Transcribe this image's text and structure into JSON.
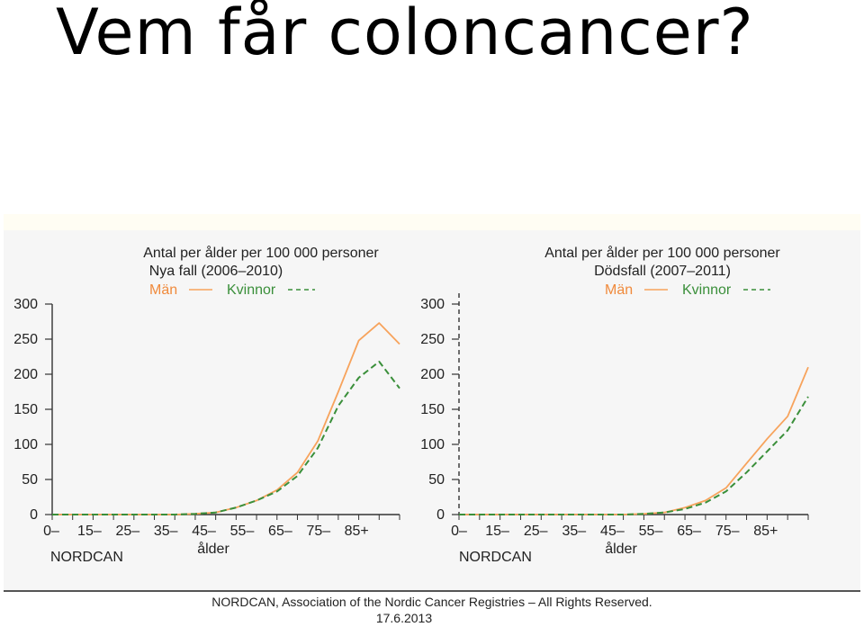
{
  "slide": {
    "title": "Vem får coloncancer?"
  },
  "colors": {
    "men": "#f7a35c",
    "women": "#3a8f3a",
    "text": "#222222",
    "men_label": "#f08a3c",
    "women_label": "#3a8f3a"
  },
  "chart_data": [
    {
      "type": "line",
      "title": "Antal per ålder per 100 000 personer",
      "subtitle": "Nya fall (2006–2010)",
      "source": "NORDCAN",
      "xlabel": "ålder",
      "ylabel": "",
      "x_tick_labels": [
        "0–",
        "15–",
        "25–",
        "35–",
        "45–",
        "55–",
        "65–",
        "75–",
        "85+"
      ],
      "y_ticks": [
        0,
        50,
        100,
        150,
        200,
        250,
        300
      ],
      "ylim": [
        0,
        300
      ],
      "legend": {
        "placement": "top",
        "men_label": "Män",
        "women_label": "Kvinnor"
      },
      "x": [
        0,
        5,
        10,
        15,
        20,
        25,
        30,
        35,
        40,
        45,
        50,
        55,
        60,
        65,
        70,
        75,
        80,
        85
      ],
      "series": [
        {
          "name": "Män",
          "style": "solid",
          "values": [
            0,
            0,
            0,
            0,
            0,
            0,
            0,
            1,
            3,
            10,
            20,
            35,
            60,
            105,
            175,
            248,
            273,
            243
          ]
        },
        {
          "name": "Kvinnor",
          "style": "dashed",
          "values": [
            0,
            0,
            0,
            0,
            0,
            0,
            0,
            1,
            3,
            10,
            20,
            33,
            55,
            95,
            155,
            195,
            218,
            180
          ]
        }
      ]
    },
    {
      "type": "line",
      "title": "Antal per ålder per 100 000 personer",
      "subtitle": "Dödsfall (2007–2011)",
      "source": "NORDCAN",
      "xlabel": "ålder",
      "ylabel": "",
      "x_tick_labels": [
        "0–",
        "15–",
        "25–",
        "35–",
        "45–",
        "55–",
        "65–",
        "75–",
        "85+"
      ],
      "y_ticks": [
        0,
        50,
        100,
        150,
        200,
        250,
        300
      ],
      "ylim": [
        0,
        300
      ],
      "legend": {
        "placement": "top",
        "men_label": "Män",
        "women_label": "Kvinnor"
      },
      "x": [
        0,
        5,
        10,
        15,
        20,
        25,
        30,
        35,
        40,
        45,
        50,
        55,
        60,
        65,
        70,
        75,
        80,
        85
      ],
      "series": [
        {
          "name": "Män",
          "style": "solid",
          "values": [
            0,
            0,
            0,
            0,
            0,
            0,
            0,
            0,
            0,
            1,
            3,
            10,
            20,
            38,
            73,
            108,
            140,
            210
          ]
        },
        {
          "name": "Kvinnor",
          "style": "dashed",
          "values": [
            0,
            0,
            0,
            0,
            0,
            0,
            0,
            0,
            0,
            1,
            3,
            8,
            17,
            33,
            60,
            90,
            120,
            168
          ]
        }
      ]
    }
  ],
  "footer": {
    "copyright": "NORDCAN, Association of the Nordic Cancer Registries – All Rights Reserved.",
    "date": "17.6.2013"
  }
}
